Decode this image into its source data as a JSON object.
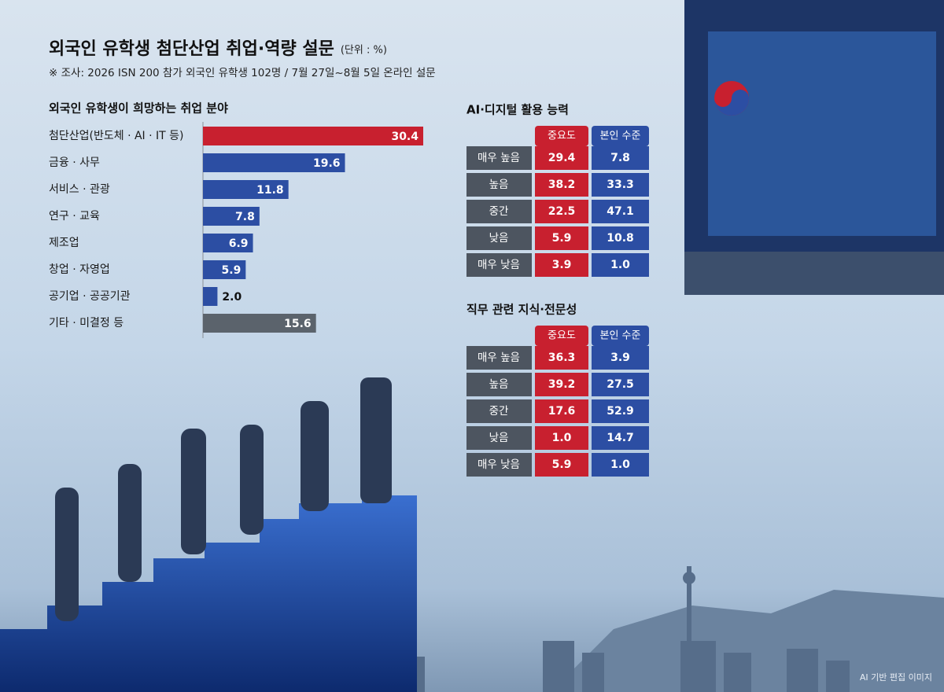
{
  "header": {
    "title": "외국인 유학생 첨단산업 취업·역량 설문",
    "unit": "(단위 : %)",
    "source": "※ 조사: 2026 ISN 200 참가 외국인 유학생 102명 / 7월 27일~8월 5일 온라인 설문",
    "credit": "AI 기반 편집 이미지"
  },
  "chart_data": {
    "type": "barh",
    "title": "외국인 유학생이 희망하는 취업 분야",
    "categories": [
      "첨단산업(반도체 · AI · IT 등)",
      "금융 · 사무",
      "서비스 · 관광",
      "연구 · 교육",
      "제조업",
      "창업 · 자영업",
      "공기업 · 공공기관",
      "기타 · 미결정 등"
    ],
    "values": [
      30.4,
      19.6,
      11.8,
      7.8,
      6.9,
      5.9,
      2.0,
      15.6
    ],
    "value_labels": [
      "30.4",
      "19.6",
      "11.8",
      "7.8",
      "6.9",
      "5.9",
      "2.0",
      "15.6"
    ],
    "colors": [
      "#c8202f",
      "#2c4ea3",
      "#2c4ea3",
      "#2c4ea3",
      "#2c4ea3",
      "#2c4ea3",
      "#2c4ea3",
      "#5b636c"
    ]
  },
  "tables": [
    {
      "title": "AI·디지털 활용 능력",
      "columns": [
        "중요도",
        "본인 수준"
      ],
      "column_colors": [
        "#c8202f",
        "#2c4ea3"
      ],
      "rows": [
        [
          "매우 높음",
          "29.4",
          "7.8"
        ],
        [
          "높음",
          "38.2",
          "33.3"
        ],
        [
          "중간",
          "22.5",
          "47.1"
        ],
        [
          "낮음",
          "5.9",
          "10.8"
        ],
        [
          "매우 낮음",
          "3.9",
          "1.0"
        ]
      ]
    },
    {
      "title": "직무 관련 지식·전문성",
      "columns": [
        "중요도",
        "본인 수준"
      ],
      "column_colors": [
        "#c8202f",
        "#2c4ea3"
      ],
      "rows": [
        [
          "매우 높음",
          "36.3",
          "3.9"
        ],
        [
          "높음",
          "39.2",
          "27.5"
        ],
        [
          "중간",
          "17.6",
          "52.9"
        ],
        [
          "낮음",
          "1.0",
          "14.7"
        ],
        [
          "매우 낮음",
          "5.9",
          "1.0"
        ]
      ]
    }
  ]
}
